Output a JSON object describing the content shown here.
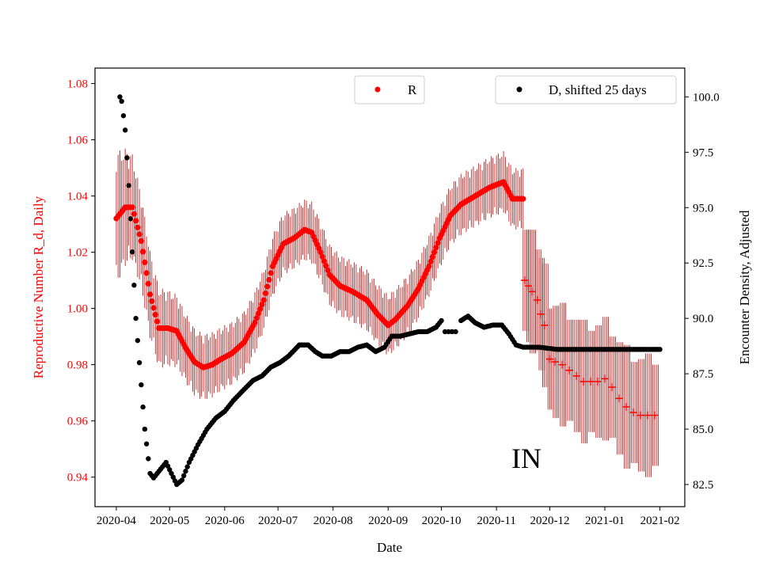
{
  "chart_data": {
    "type": "scatter",
    "state_label": "IN",
    "xlabel": "Date",
    "ylabel_left": "Reproductive Number R_d, Daily",
    "ylabel_right": "Encounter Density, Adjusted",
    "x_range": [
      "2020-03-20",
      "2021-02-15"
    ],
    "ylim_left": [
      0.9295,
      1.0855
    ],
    "ylim_right": [
      81.5,
      101.3
    ],
    "x_ticks": [
      "2020-04",
      "2020-05",
      "2020-06",
      "2020-07",
      "2020-08",
      "2020-09",
      "2020-10",
      "2020-11",
      "2020-12",
      "2021-01",
      "2021-02"
    ],
    "y_ticks_left": [
      "0.94",
      "0.96",
      "0.98",
      "1.00",
      "1.02",
      "1.04",
      "1.06",
      "1.08"
    ],
    "y_ticks_right": [
      "82.5",
      "85.0",
      "87.5",
      "90.0",
      "92.5",
      "95.0",
      "97.5",
      "100.0"
    ],
    "colors": {
      "r_series": "#ff0000",
      "error_bar": "#c00000",
      "d_series": "#000000",
      "left_axis": "#ff0000"
    },
    "legend_r": "R",
    "legend_d": "D, shifted 25 days",
    "r_knots": [
      [
        "2020-04-01",
        1.032
      ],
      [
        "2020-04-06",
        1.036
      ],
      [
        "2020-04-10",
        1.036
      ],
      [
        "2020-04-15",
        1.024
      ],
      [
        "2020-04-20",
        1.005
      ],
      [
        "2020-04-25",
        0.993
      ],
      [
        "2020-04-30",
        0.993
      ],
      [
        "2020-05-05",
        0.992
      ],
      [
        "2020-05-10",
        0.986
      ],
      [
        "2020-05-15",
        0.981
      ],
      [
        "2020-05-20",
        0.979
      ],
      [
        "2020-05-25",
        0.98
      ],
      [
        "2020-05-30",
        0.982
      ],
      [
        "2020-06-05",
        0.984
      ],
      [
        "2020-06-12",
        0.988
      ],
      [
        "2020-06-18",
        0.995
      ],
      [
        "2020-06-23",
        1.003
      ],
      [
        "2020-06-28",
        1.015
      ],
      [
        "2020-07-04",
        1.023
      ],
      [
        "2020-07-10",
        1.025
      ],
      [
        "2020-07-16",
        1.028
      ],
      [
        "2020-07-20",
        1.027
      ],
      [
        "2020-07-25",
        1.02
      ],
      [
        "2020-07-30",
        1.012
      ],
      [
        "2020-08-05",
        1.008
      ],
      [
        "2020-08-12",
        1.006
      ],
      [
        "2020-08-20",
        1.003
      ],
      [
        "2020-08-26",
        0.998
      ],
      [
        "2020-09-01",
        0.994
      ],
      [
        "2020-09-05",
        0.996
      ],
      [
        "2020-09-12",
        1.001
      ],
      [
        "2020-09-18",
        1.007
      ],
      [
        "2020-09-24",
        1.015
      ],
      [
        "2020-09-30",
        1.025
      ],
      [
        "2020-10-06",
        1.033
      ],
      [
        "2020-10-12",
        1.037
      ],
      [
        "2020-10-20",
        1.04
      ],
      [
        "2020-10-28",
        1.043
      ],
      [
        "2020-11-05",
        1.045
      ],
      [
        "2020-11-10",
        1.039
      ],
      [
        "2020-11-16",
        1.039
      ]
    ],
    "r_sparse_points": [
      [
        "2020-11-17",
        1.01
      ],
      [
        "2020-11-19",
        1.008
      ],
      [
        "2020-11-21",
        1.006
      ],
      [
        "2020-11-24",
        1.003
      ],
      [
        "2020-11-26",
        0.998
      ],
      [
        "2020-11-28",
        0.994
      ],
      [
        "2020-12-01",
        0.982
      ],
      [
        "2020-12-04",
        0.981
      ],
      [
        "2020-12-08",
        0.98
      ],
      [
        "2020-12-12",
        0.978
      ],
      [
        "2020-12-16",
        0.976
      ],
      [
        "2020-12-20",
        0.974
      ],
      [
        "2020-12-24",
        0.974
      ],
      [
        "2020-12-28",
        0.974
      ],
      [
        "2021-01-01",
        0.975
      ],
      [
        "2021-01-05",
        0.972
      ],
      [
        "2021-01-09",
        0.968
      ],
      [
        "2021-01-13",
        0.965
      ],
      [
        "2021-01-17",
        0.963
      ],
      [
        "2021-01-21",
        0.962
      ],
      [
        "2021-01-25",
        0.962
      ],
      [
        "2021-01-29",
        0.962
      ]
    ],
    "d_knots": [
      [
        "2020-04-03",
        100.0
      ],
      [
        "2020-04-04",
        99.8
      ],
      [
        "2020-04-06",
        98.5
      ],
      [
        "2020-04-08",
        96.0
      ],
      [
        "2020-04-10",
        93.0
      ],
      [
        "2020-04-12",
        90.0
      ],
      [
        "2020-04-15",
        87.0
      ],
      [
        "2020-04-17",
        85.0
      ],
      [
        "2020-04-20",
        83.0
      ],
      [
        "2020-04-22",
        82.8
      ],
      [
        "2020-04-26",
        83.2
      ],
      [
        "2020-04-29",
        83.5
      ],
      [
        "2020-05-02",
        83.0
      ],
      [
        "2020-05-05",
        82.5
      ],
      [
        "2020-05-08",
        82.7
      ],
      [
        "2020-05-12",
        83.5
      ],
      [
        "2020-05-17",
        84.3
      ],
      [
        "2020-05-22",
        85.0
      ],
      [
        "2020-05-27",
        85.5
      ],
      [
        "2020-06-01",
        85.8
      ],
      [
        "2020-06-06",
        86.3
      ],
      [
        "2020-06-12",
        86.8
      ],
      [
        "2020-06-17",
        87.2
      ],
      [
        "2020-06-22",
        87.4
      ],
      [
        "2020-06-27",
        87.8
      ],
      [
        "2020-07-02",
        88.0
      ],
      [
        "2020-07-07",
        88.3
      ],
      [
        "2020-07-13",
        88.8
      ],
      [
        "2020-07-18",
        88.8
      ],
      [
        "2020-07-22",
        88.5
      ],
      [
        "2020-07-26",
        88.3
      ],
      [
        "2020-07-31",
        88.3
      ],
      [
        "2020-08-05",
        88.5
      ],
      [
        "2020-08-10",
        88.5
      ],
      [
        "2020-08-15",
        88.7
      ],
      [
        "2020-08-20",
        88.8
      ],
      [
        "2020-08-25",
        88.5
      ],
      [
        "2020-08-30",
        88.7
      ],
      [
        "2020-09-03",
        89.2
      ],
      [
        "2020-09-08",
        89.2
      ],
      [
        "2020-09-13",
        89.3
      ],
      [
        "2020-09-18",
        89.4
      ],
      [
        "2020-09-23",
        89.4
      ],
      [
        "2020-09-28",
        89.6
      ],
      [
        "2020-10-01",
        89.9
      ]
    ],
    "d_gap_points": [
      [
        "2020-10-03",
        89.4
      ],
      [
        "2020-10-05",
        89.4
      ],
      [
        "2020-10-07",
        89.4
      ],
      [
        "2020-10-09",
        89.4
      ]
    ],
    "d_knots_2": [
      [
        "2020-10-12",
        89.9
      ],
      [
        "2020-10-16",
        90.1
      ],
      [
        "2020-10-20",
        89.8
      ],
      [
        "2020-10-25",
        89.6
      ],
      [
        "2020-10-30",
        89.7
      ],
      [
        "2020-11-04",
        89.7
      ],
      [
        "2020-11-08",
        89.3
      ],
      [
        "2020-11-12",
        88.8
      ],
      [
        "2020-11-16",
        88.7
      ],
      [
        "2020-11-25",
        88.7
      ],
      [
        "2020-12-05",
        88.6
      ],
      [
        "2021-02-01",
        88.6
      ]
    ]
  }
}
